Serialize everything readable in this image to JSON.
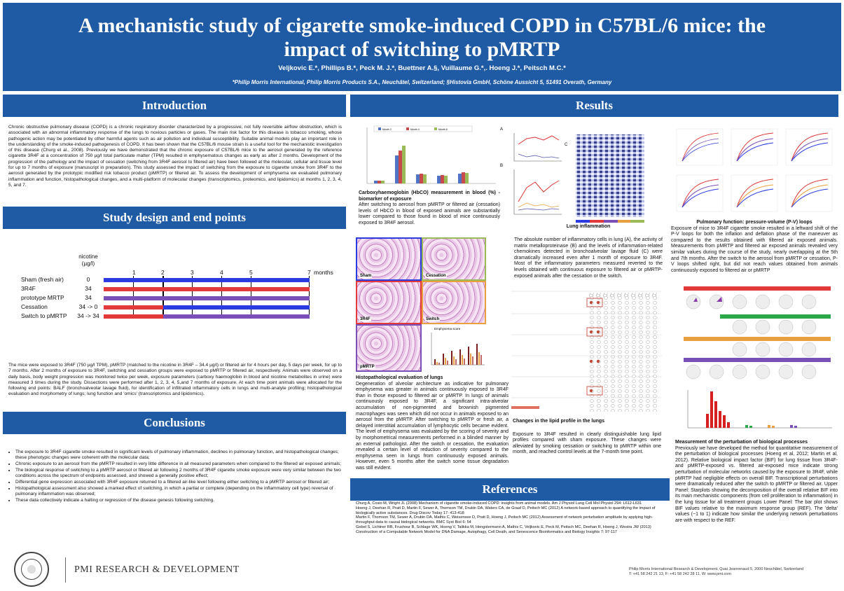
{
  "banner": {
    "title_line1": "A mechanistic study of cigarette smoke-induced COPD in C57BL/6 mice: the",
    "title_line2": "impact of switching to pMRTP",
    "authors": "Veljkovic E.*, Phillips B.*, Peck M. J.*, Buettner A.§, Vuillaume G.*,. Hoeng J.*, Peitsch M.C.*",
    "affiliations": "*Philip Morris International, Philip Morris Products S.A., Neuchâtel, Switzerland; §Histovia GmbH, Schöne Aussicht 5, 51491 Overath, Germany"
  },
  "sections": {
    "introduction": "Introduction",
    "study_design": "Study design and end points",
    "conclusions": "Conclusions",
    "results": "Results",
    "references": "References"
  },
  "introduction_text": "Chronic obstructive pulmonary disease (COPD) is a chronic respiratory disorder characterized by a progressive, not fully reversible airflow obstruction, which is associated with an abnormal inflammatory response of the lungs to noxious particles or gases. The main risk factor for this disease is tobacco smoking, whose pathogenic action may be potentiated by other harmful agents such as air pollution and individual susceptibility. Suitable animal models play an important role in the understanding of the smoke-induced pathogenesis of COPD. It has been shown that the C57BL/6 mouse strain is a useful tool for the mechanistic investigation of this disease (Churg et al., 2008). Previously we have demonstrated that the chronic exposure of C57BL/6 mice to the aerosol generated by the reference cigarette 3R4F at a concentration of 750 µg/l total particulate matter (TPM) resulted in emphysematous changes as early as after 2 months. Development of the progression of the pathology and the impact of cessation (switching from 3R4F aerosol to filtered air) have been followed at the molecular, cellular and tissue level for up to 7 months of exposure (manuscript in preparation). This study assessed the impact of switching from the exposure to cigarette smoke from 3R4F to the aerosol generated by the prototypic modified risk tobacco product (pMRTP) or filtered air. To assess the development of emphysema we evaluated pulmonary inflammation and function, histopathological changes, and a multi-platform of molecular changes (transcriptomics, proteomics, and lipidomics) at months 1, 2, 3, 4, 5, and 7.",
  "study_design": {
    "dose_header": "nicotine\n(µg/l)",
    "months": [
      "1",
      "2",
      "3",
      "4",
      "5",
      "7"
    ],
    "months_label": "months",
    "groups": [
      {
        "label": "Sham (fresh air)",
        "dose": "0"
      },
      {
        "label": "3R4F",
        "dose": "34"
      },
      {
        "label": "prototype MRTP",
        "dose": "34"
      },
      {
        "label": "Cessation",
        "dose": "34 -> 0"
      },
      {
        "label": "Switch to pMRTP",
        "dose": "34 -> 34"
      }
    ],
    "text": "The mice were exposed to 3R4F (750 µg/l TPM), pMRTP (matched to the nicotine in 3R4F – 34.4 µg/l) or filtered air for 4 hours per day, 5 days per week, for up to 7 months. After 2 months of exposure to 3R4F, switching and cessation groups were exposed to pMRTP or filtered air, respectively. Animals were observed on a daily basis, body weight progression was monitored twice per week, exposure parameters (carboxy haemoglobin in blood and nicotine metabolites in urine) were measured 3 times during the study. Dissections were performed after 1, 2, 3, 4, 5,and 7 months of exposure. At each time point animals were allocated for the following end points: BALF (bronchoalveolar lavage fluid), for identification of infiltrated inflammatory cells in lungs and multi-analyte profiling; histopathological evaluation and morphometry of lungs; lung function and 'omics' (transcriptomics and lipidomics)."
  },
  "conclusions": [
    "The exposure to 3R4F cigarette smoke resulted in significant levels of pulmonary inflammation, declines in pulmonary function, and histopathological changes; these phenotypic changes were coherent with the molecular data;",
    "Chronic exposure to an aerosol from the pMRTP resulted in very little difference in all measured parameters when compared to the filtered air exposed animals;",
    "The biological response of switching to a pMRTP aerosol or filtered air following 2 months of 3R4F cigarette smoke exposure were very similar between the two conditions across the spectrum of endpoints assessed, and showed a generally positive effect;",
    "Differential gene expression associated with 3R4F exposure returned to a filtered air-like level following either switching to a pMRTP aerosol or filtered air;",
    "Histopathological assessment also showed a marked effect of switching, in which a partial or complete (depending on the inflammatory cell type) reversal of pulmonary inflammation was observed;",
    "These data collectively indicate a halting or regression of the disease genesis following switching."
  ],
  "results": {
    "hbco": {
      "legend": [
        "Month 2",
        "Month 4",
        "Month 6"
      ],
      "title": "Carboxyhaemoglobin (HbCO) measurement in blood (%) - biomarker of exposure",
      "text": "After switching to aerosol from pMRTP or filtered air (cessation) levels of HbCO in blood of exposed animals are substantially lower compared to those found in blood of mice continuously exposed to 3R4F aerosol."
    },
    "inflammation": {
      "title": "Lung inflammation",
      "text": "The absolute number of inflammatory cells in lung (A), the activity of matrix metalloproteinase (B) and the levels of inflammation-related chemokines detected in bronchoalveolar lavage fluid (C) were dramatically increased even after 1 month of exposure to 3R4F. Most of the inflammatory parameters measured reverted to the levels obtained with continuous exposure to filtered air or pMRTP-exposed animals after the cessation or the switch."
    },
    "histo": {
      "panels": [
        "Sham",
        "Cessation",
        "3R4F",
        "Switch",
        "pMRTP"
      ],
      "score_title": "Emphysema score",
      "title": "Histopathological evaluation of lungs",
      "text": "Degeneration of alveolar architecture as indicative for pulmonary emphysema was greater in animals continuously exposed to 3R4F than in those exposed to filtered air or pMRTP. In lungs of animals continuously exposed to 3R4F, a significant intra-alveolar accumulation of non-pigmented and brownish pigmented macrophages was seen which did not occur in animals exposed to an aerosol from the pMRTP. After switching to pMRTP or fresh air, a delayed interstitial accumulation of lymphocytic cells became evident. The level of emphysema was evaluated by the scoring of severity and by morphometrical measurements performed in a blinded manner by an external pathologist. After the switch or cessation, the evaluation revealed a certain level of reduction of severity compared to the emphysema seen in lungs from continuously exposed animals. However, even 5 months after the switch some tissue degradation was still evident."
    },
    "lipid": {
      "title": "Changes in the lipid profile in the lungs",
      "text": "Exposure to 3R4F resulted in clearly distinguishable lung lipid profiles compared with sham exposure. These changes were alleviated by smoking cessation or switching to pMRTP within one month, and reached control levels at the 7-month time point."
    },
    "pv": {
      "title": "Pulmonary function: pressure-volume (P-V) loops",
      "text": "Exposure of mice to 3R4F cigarette smoke resulted in a leftward shift of the P-V loops for both the inflation and deflation phase of the maneuver as compared to the results obtained with filtered air exposed animals. Measurements from pMRTP and filtered air exposed animals revealed very similar values during the course of the study, nearly overlapping at the 5th and 7th months. After the switch to the aerosol from pMRTP or cessation, P-V loops shifted right, but did not reach values obtained from animals continuously exposed to filtered air or pMRTP"
    },
    "bif": {
      "title": "Measurement of the perturbation of biological processes",
      "text": "Previously we have developed the method for quantitative measurement of the perturbation of biological processes (Hoeng et al, 2012; Martin et al, 2012). Relative biological impact factor (BIF) for lung tissue from 3R4F- and pMRTP-exposed vs. filtered air-exposed mice indicate strong perturbation of molecular networks caused by the exposure to 3R4F, while pMRTP had negligible effects on overall BIF. Transcriptional perturbations were dramatically reduced after the switch to pMRTP or filtered air. Upper Panel: Starplots showing the decomposition of the overall relative BIF into its main mechanistic components (from cell proliferation to inflammation) in the lung tissue for all treatment groups Lower Panel: The bar plot shows BIF values relative to the maximum response group (REF). The 'delta' values (−1 to 1) indicate how similar the underlying network perturbations are with respect to the REF."
    }
  },
  "references_text": "Churg A, Cosio M, Wright JL (2008) Mechanism of cigarette smoke-induced COPD: insights from animal models. Am J Physiol Lung Cell Mol Physiol 294: L612-L631\nHoeng J, Deehan R, Pratt D, Martin F, Sewer A, Thomson TM, Drubin DA, Waters CA, de Graaf D, Peitsch MC (2012) A network-based approach to quantifying the impact of biologically active substances. Drug Discov Today 17: 413-418\nMartin F, Thomson TM, Sewer A, Drubin DA, Mathis C, Weisensee D, Pratt D, Hoeng J, Peitsch MC (2012) Assessment of network perturbation amplitude by applying high-throughput data to causal biological networks. BMC Syst Biol 6: 54\nGebel S, Lichtner RB, Frushour B, Schlage WK, Hoeng V, Talikka M, Hengstermann A, Mathis C, Veljkovic E, Peck M, Peitsch MC, Deehan R, Hoeng J, Westra JW (2013) Construction of a Computable Network Model for DNA Damage, Autophagy, Cell Death, and Senescence Bioinformatics and Biology Insights 7: 97-117",
  "footer": {
    "brand": "PMI RESEARCH & DEVELOPMENT",
    "address_line1": "Philip Morris International Research & Development, Quai Jeanrenaud 5, 2000 Neuchâtel, Switzerland",
    "address_line2": "T: +41 58 242 21 13, F: +41 58 242 28 11, W: www.pmi.com"
  },
  "colors": {
    "header_blue": "#1f5aa5",
    "sham": "#2a3be0",
    "r4f": "#e23a3a",
    "pmrtp": "#7a4fb8"
  }
}
